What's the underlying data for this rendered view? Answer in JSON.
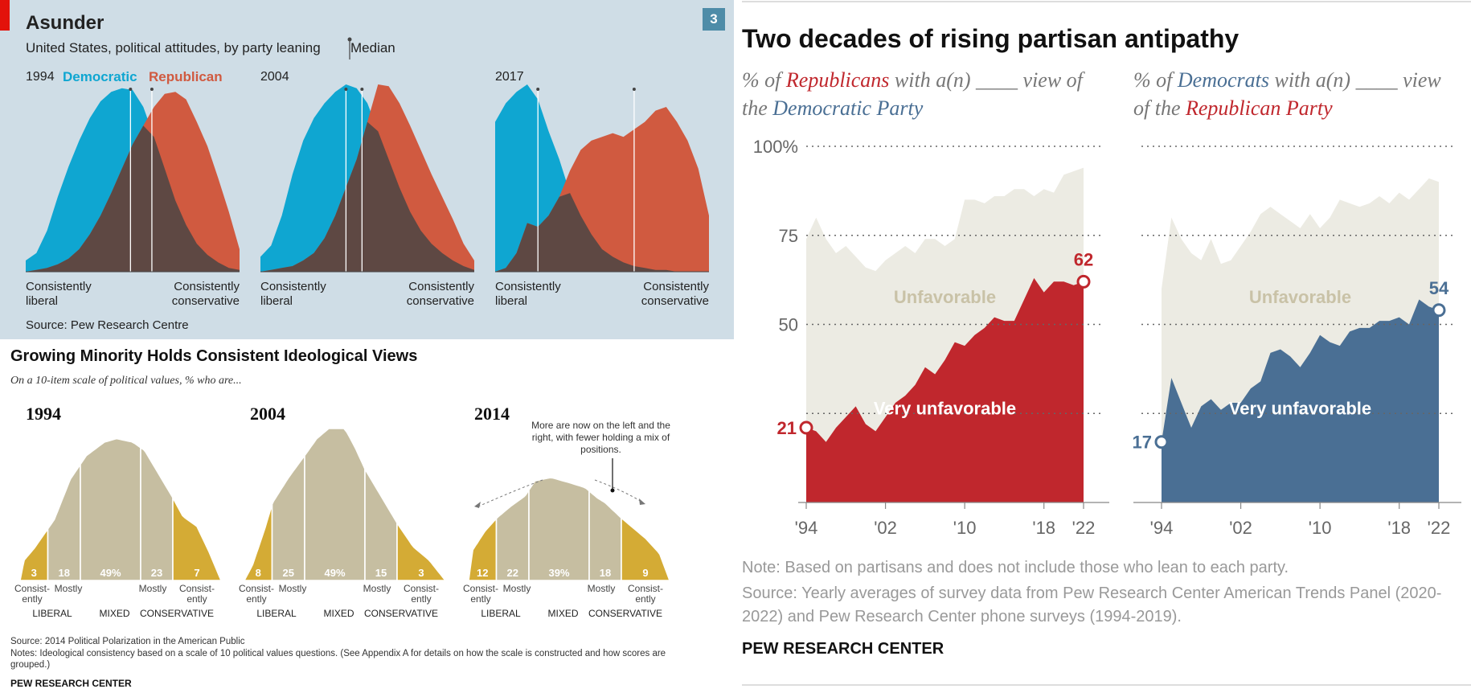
{
  "economist": {
    "title": "Asunder",
    "subtitle": "United States, political attitudes, by party leaning",
    "median_label": "Median",
    "badge": "3",
    "source": "Source: Pew Research Centre",
    "legend": {
      "democratic": "Democratic",
      "republican": "Republican"
    },
    "left_label_1": "Consistently",
    "left_label_2": "liberal",
    "right_label_1": "Consistently",
    "right_label_2": "conservative",
    "colors": {
      "democratic": "#0fa6d1",
      "republican": "#d05a40",
      "overlap": "#5e4843",
      "background": "#cfdde6"
    }
  },
  "pew1": {
    "title": "Growing Minority Holds Consistent Ideological Views",
    "subtitle": "On a 10-item scale of political values, % who are...",
    "annotation": "More are now on the left and the right, with fewer holding a mix of positions.",
    "source": "Source: 2014 Political Polarization in the American Public",
    "notes": "Notes: Ideological consistency based on a scale of 10 political values questions. (See Appendix A for details on how the scale is constructed and how scores are grouped.)",
    "org": "PEW RESEARCH CENTER",
    "cat_labels": [
      "Consist-\nently",
      "Mostly",
      "",
      "Mostly",
      "Consist-\nently"
    ],
    "group_labels": [
      "LIBERAL",
      "MIXED",
      "CONSERVATIVE"
    ],
    "colors": {
      "consistent": "#d4ab35",
      "other": "#c6bea1"
    }
  },
  "pew2": {
    "title": "Two decades of rising partisan antipathy",
    "left_sub": {
      "a": "% of ",
      "b": "Republicans",
      "c": " with a(n) ____ view of the ",
      "d": "Democratic Party"
    },
    "right_sub": {
      "a": "% of ",
      "b": "Democrats",
      "c": " with a(n) ____ view of the ",
      "d": "Republican Party"
    },
    "unfavorable_label": "Unfavorable",
    "very_unfavorable_label": "Very unfavorable",
    "note": "Note: Based on partisans and does not include those who lean to each party.",
    "source": "Source: Yearly averages of survey data from Pew Research Center American Trends Panel (2020-2022) and Pew Research Center phone surveys (1994-2019).",
    "org": "PEW RESEARCH CENTER",
    "colors": {
      "republican": "#c0272d",
      "democrat": "#4a6f94",
      "unfavorable": "#ecebe3"
    }
  },
  "chart_data": [
    {
      "type": "area",
      "title": "Asunder",
      "subtitle": "United States, political attitudes, by party leaning",
      "panels": [
        {
          "year": "1994",
          "x": [
            0,
            1,
            2,
            3,
            4,
            5,
            6,
            7,
            8,
            9,
            10,
            11,
            12,
            13,
            14,
            15,
            16,
            17,
            18,
            19,
            20
          ],
          "series": [
            {
              "name": "Democratic",
              "values": [
                6,
                10,
                22,
                40,
                56,
                70,
                82,
                91,
                96,
                98,
                97,
                88,
                72,
                55,
                38,
                25,
                15,
                9,
                5,
                2,
                1
              ],
              "median": 9.8
            },
            {
              "name": "Republican",
              "values": [
                0,
                1,
                2,
                4,
                7,
                12,
                20,
                30,
                42,
                55,
                68,
                78,
                88,
                95,
                96,
                92,
                80,
                67,
                50,
                32,
                12
              ],
              "median": 11.8
            }
          ]
        },
        {
          "year": "2004",
          "x": [
            0,
            1,
            2,
            3,
            4,
            5,
            6,
            7,
            8,
            9,
            10,
            11,
            12,
            13,
            14,
            15,
            16,
            17,
            18,
            19,
            20
          ],
          "series": [
            {
              "name": "Democratic",
              "values": [
                8,
                14,
                30,
                52,
                70,
                82,
                90,
                96,
                100,
                98,
                90,
                75,
                60,
                45,
                32,
                22,
                15,
                10,
                6,
                3,
                1
              ],
              "median": 8.0
            },
            {
              "name": "Republican",
              "values": [
                0,
                1,
                2,
                3,
                6,
                10,
                18,
                30,
                45,
                60,
                80,
                100,
                99,
                90,
                78,
                65,
                52,
                40,
                28,
                15,
                6
              ],
              "median": 9.5
            }
          ]
        },
        {
          "year": "2017",
          "x": [
            0,
            1,
            2,
            3,
            4,
            5,
            6,
            7,
            8,
            9,
            10,
            11,
            12,
            13,
            14,
            15,
            16,
            17,
            18,
            19,
            20
          ],
          "series": [
            {
              "name": "Democratic",
              "values": [
                80,
                90,
                96,
                100,
                92,
                75,
                60,
                42,
                30,
                20,
                12,
                8,
                5,
                3,
                2,
                1,
                1,
                0,
                0,
                0,
                0
              ],
              "median": 4.0
            },
            {
              "name": "Republican",
              "values": [
                0,
                2,
                10,
                26,
                24,
                30,
                40,
                54,
                65,
                70,
                72,
                74,
                72,
                76,
                80,
                86,
                88,
                80,
                70,
                55,
                30
              ],
              "median": 13.0
            }
          ]
        }
      ]
    },
    {
      "type": "area",
      "title": "Growing Minority Holds Consistent Ideological Views",
      "subtitle": "On a 10-item scale of political values, % who are...",
      "categories": [
        "Consistently liberal",
        "Mostly liberal",
        "Mixed",
        "Mostly conservative",
        "Consistently conservative"
      ],
      "panels": [
        {
          "year": "1994",
          "values": [
            3,
            18,
            49,
            23,
            7
          ],
          "labels": [
            "3",
            "18",
            "49%",
            "23",
            "7"
          ]
        },
        {
          "year": "2004",
          "values": [
            8,
            25,
            49,
            15,
            3
          ],
          "labels": [
            "8",
            "25",
            "49%",
            "15",
            "3"
          ]
        },
        {
          "year": "2014",
          "values": [
            12,
            22,
            39,
            18,
            9
          ],
          "labels": [
            "12",
            "22",
            "39%",
            "18",
            "9"
          ]
        }
      ]
    },
    {
      "type": "area",
      "title": "Two decades of rising partisan antipathy",
      "ylim": [
        0,
        100
      ],
      "yticks": [
        0,
        25,
        50,
        75,
        100
      ],
      "ytick_labels": [
        "",
        "",
        "50",
        "75",
        "100%"
      ],
      "xticks": [
        1994,
        2002,
        2010,
        2018,
        2022
      ],
      "xtick_labels": [
        "'94",
        "'02",
        "'10",
        "'18",
        "'22"
      ],
      "panels": [
        {
          "name": "Republicans' view of the Democratic Party",
          "x": [
            1994,
            1995,
            1996,
            1997,
            1998,
            1999,
            2000,
            2001,
            2002,
            2003,
            2004,
            2005,
            2006,
            2007,
            2008,
            2009,
            2010,
            2011,
            2012,
            2013,
            2014,
            2015,
            2016,
            2017,
            2018,
            2019,
            2020,
            2021,
            2022
          ],
          "series": [
            {
              "name": "Unfavorable",
              "values": [
                74,
                80,
                74,
                70,
                72,
                69,
                66,
                65,
                68,
                70,
                72,
                70,
                74,
                74,
                72,
                74,
                85,
                85,
                84,
                86,
                86,
                88,
                88,
                86,
                88,
                87,
                92,
                93,
                94
              ]
            },
            {
              "name": "Very unfavorable",
              "values": [
                21,
                20,
                17,
                21,
                24,
                27,
                22,
                20,
                24,
                28,
                30,
                33,
                38,
                36,
                40,
                45,
                44,
                47,
                49,
                52,
                51,
                51,
                57,
                63,
                59,
                62,
                62,
                61,
                62
              ]
            }
          ],
          "start_label": "21",
          "end_label": "62"
        },
        {
          "name": "Democrats' view of the Republican Party",
          "x": [
            1994,
            1995,
            1996,
            1997,
            1998,
            1999,
            2000,
            2001,
            2002,
            2003,
            2004,
            2005,
            2006,
            2007,
            2008,
            2009,
            2010,
            2011,
            2012,
            2013,
            2014,
            2015,
            2016,
            2017,
            2018,
            2019,
            2020,
            2021,
            2022
          ],
          "series": [
            {
              "name": "Unfavorable",
              "values": [
                60,
                80,
                74,
                70,
                68,
                74,
                67,
                68,
                72,
                76,
                81,
                83,
                81,
                79,
                77,
                81,
                77,
                80,
                85,
                84,
                83,
                84,
                86,
                84,
                87,
                85,
                88,
                91,
                90
              ]
            },
            {
              "name": "Very unfavorable",
              "values": [
                17,
                35,
                28,
                21,
                27,
                29,
                26,
                28,
                28,
                32,
                34,
                42,
                43,
                41,
                38,
                42,
                47,
                45,
                44,
                48,
                49,
                49,
                51,
                51,
                52,
                50,
                57,
                55,
                54
              ]
            }
          ],
          "start_label": "17",
          "end_label": "54"
        }
      ]
    }
  ]
}
